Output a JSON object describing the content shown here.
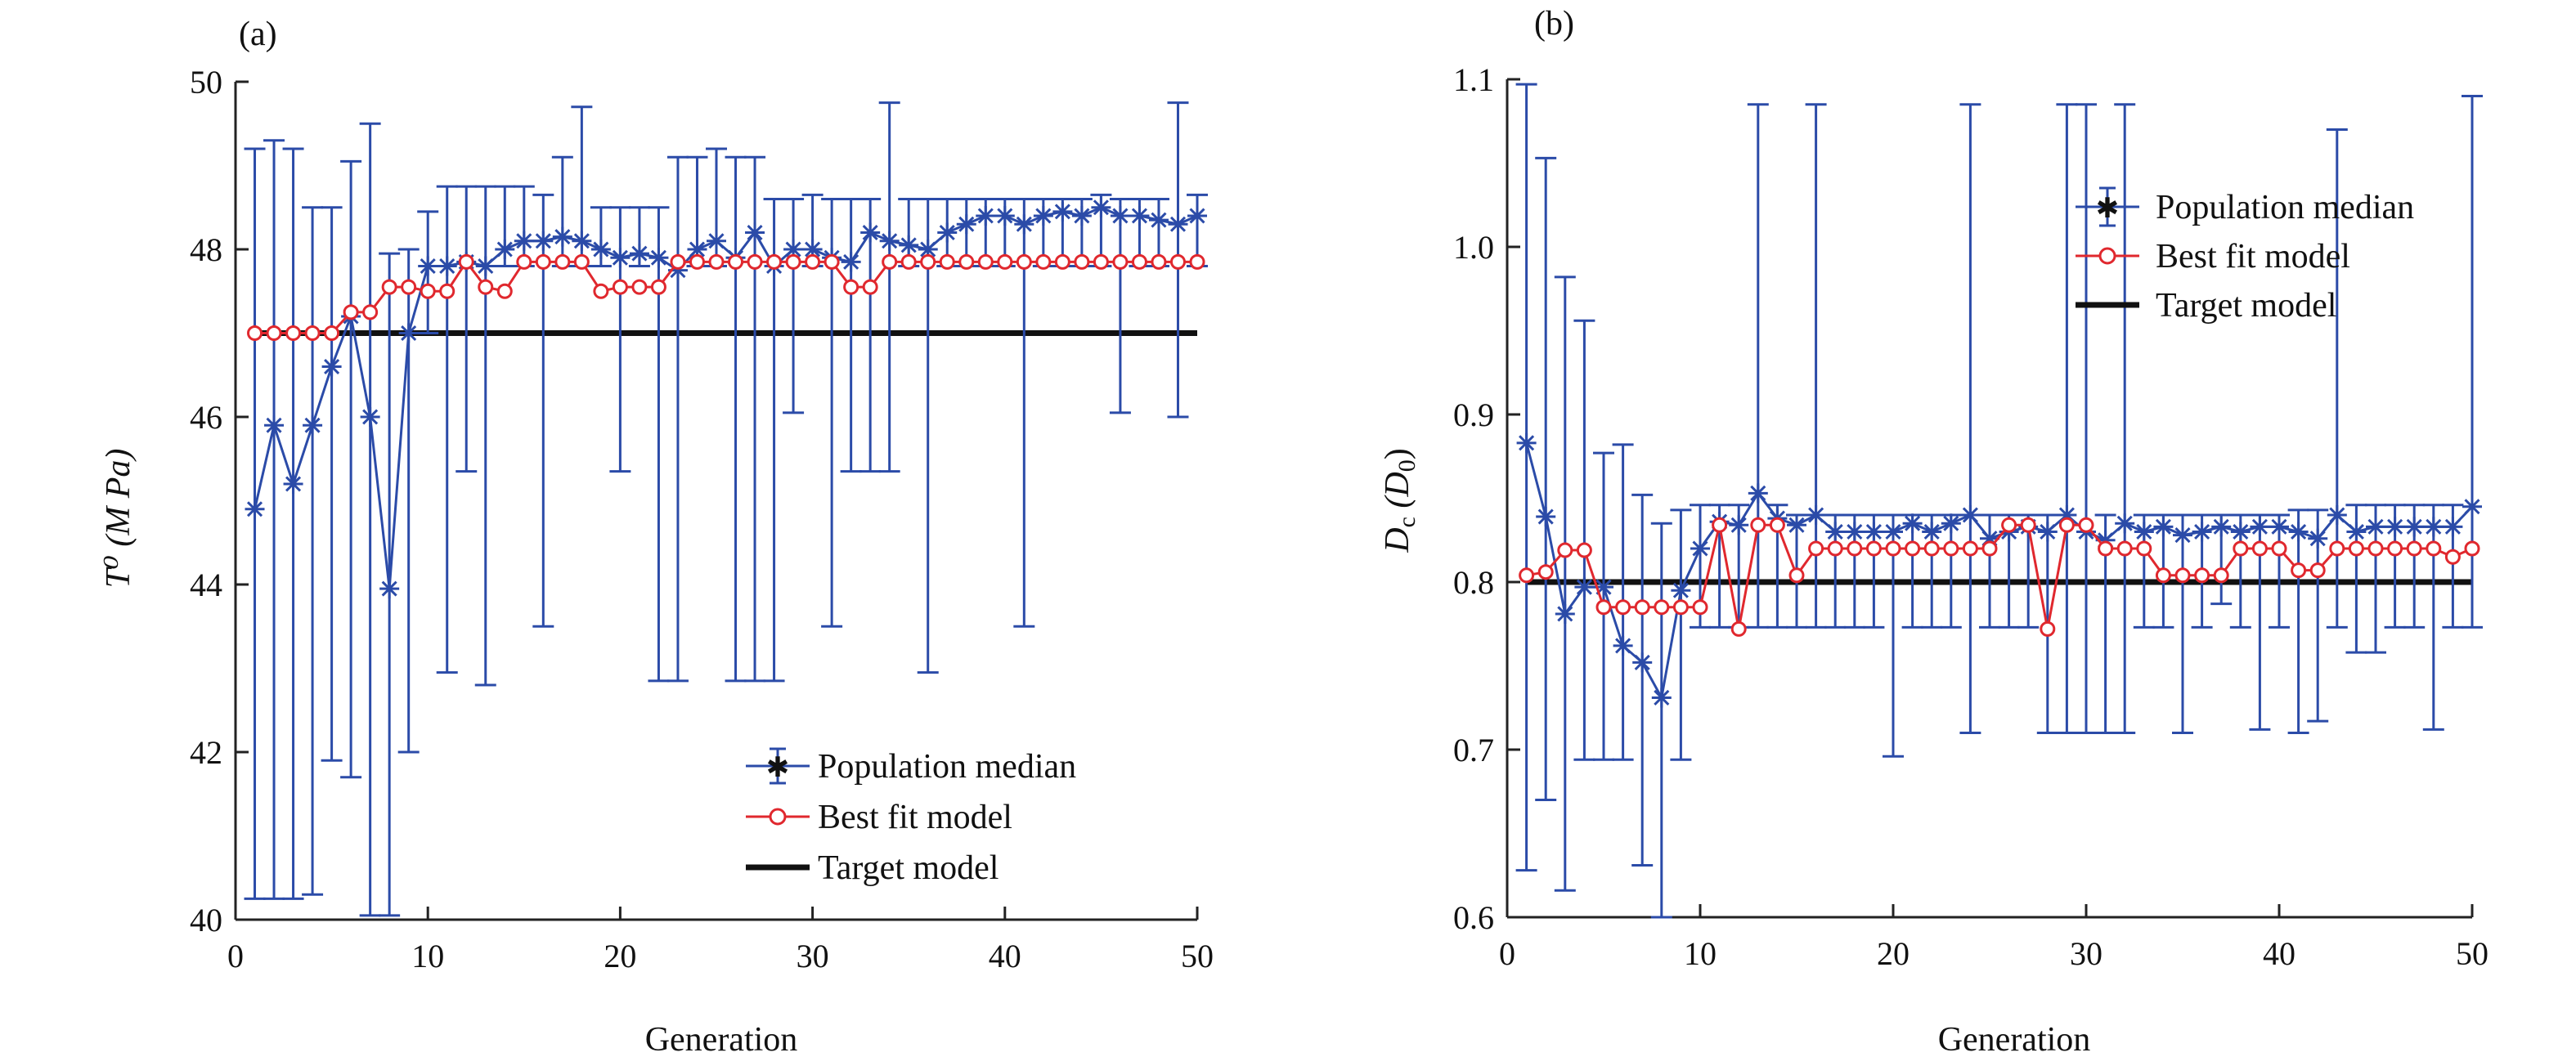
{
  "chart_data": [
    {
      "type": "line",
      "panel_label": "(a)",
      "xlabel": "Generation",
      "ylabel": "T⁰ (M Pa)",
      "xlim": [
        0,
        50
      ],
      "ylim": [
        40,
        50
      ],
      "xticks": [
        0,
        10,
        20,
        30,
        40,
        50
      ],
      "yticks": [
        40,
        42,
        44,
        46,
        48,
        50
      ],
      "legend_position": "bottom-right",
      "x": [
        1,
        2,
        3,
        4,
        5,
        6,
        7,
        8,
        9,
        10,
        11,
        12,
        13,
        14,
        15,
        16,
        17,
        18,
        19,
        20,
        21,
        22,
        23,
        24,
        25,
        26,
        27,
        28,
        29,
        30,
        31,
        32,
        33,
        34,
        35,
        36,
        37,
        38,
        39,
        40,
        41,
        42,
        43,
        44,
        45,
        46,
        47,
        48,
        49,
        50
      ],
      "series": [
        {
          "name": "Population median",
          "color": "#2b4ba8",
          "marker": "asterisk",
          "values": [
            44.9,
            45.9,
            45.2,
            45.9,
            46.6,
            47.2,
            46.0,
            43.95,
            47.0,
            47.8,
            47.8,
            47.85,
            47.8,
            48.0,
            48.1,
            48.1,
            48.15,
            48.1,
            48.0,
            47.9,
            47.95,
            47.9,
            47.75,
            48.0,
            48.1,
            47.9,
            48.2,
            47.8,
            48.0,
            48.0,
            47.9,
            47.85,
            48.2,
            48.1,
            48.05,
            48.0,
            48.2,
            48.3,
            48.4,
            48.4,
            48.3,
            48.4,
            48.45,
            48.4,
            48.5,
            48.4,
            48.4,
            48.35,
            48.3,
            48.4
          ],
          "error_upper": [
            49.2,
            49.3,
            49.2,
            48.5,
            48.5,
            49.05,
            49.5,
            47.95,
            48.0,
            48.45,
            48.75,
            48.75,
            48.75,
            48.75,
            48.75,
            48.65,
            49.1,
            49.7,
            48.5,
            48.5,
            48.5,
            48.5,
            49.1,
            49.1,
            49.2,
            49.1,
            49.1,
            48.6,
            48.6,
            48.65,
            48.6,
            48.6,
            48.6,
            49.75,
            48.6,
            48.6,
            48.6,
            48.6,
            48.6,
            48.6,
            48.6,
            48.6,
            48.6,
            48.6,
            48.65,
            48.6,
            48.6,
            48.6,
            49.75,
            48.65
          ],
          "error_lower": [
            40.25,
            40.25,
            40.25,
            40.3,
            41.9,
            41.7,
            40.05,
            40.05,
            42.0,
            47.0,
            42.95,
            45.35,
            42.8,
            47.8,
            47.8,
            43.5,
            47.8,
            47.8,
            47.8,
            45.35,
            47.8,
            42.85,
            42.85,
            47.8,
            47.8,
            42.85,
            42.85,
            42.85,
            46.05,
            47.8,
            43.5,
            45.35,
            45.35,
            45.35,
            47.8,
            42.95,
            47.8,
            47.8,
            47.8,
            47.8,
            43.5,
            47.8,
            47.8,
            47.8,
            47.8,
            46.05,
            47.8,
            47.8,
            46.0,
            47.8
          ]
        },
        {
          "name": "Best fit model",
          "color": "#e0282e",
          "marker": "circle",
          "values": [
            47.0,
            47.0,
            47.0,
            47.0,
            47.0,
            47.25,
            47.25,
            47.55,
            47.55,
            47.5,
            47.5,
            47.85,
            47.55,
            47.5,
            47.85,
            47.85,
            47.85,
            47.85,
            47.5,
            47.55,
            47.55,
            47.55,
            47.85,
            47.85,
            47.85,
            47.85,
            47.85,
            47.85,
            47.85,
            47.85,
            47.85,
            47.55,
            47.55,
            47.85,
            47.85,
            47.85,
            47.85,
            47.85,
            47.85,
            47.85,
            47.85,
            47.85,
            47.85,
            47.85,
            47.85,
            47.85,
            47.85,
            47.85,
            47.85,
            47.85
          ]
        },
        {
          "name": "Target model",
          "color": "#111111",
          "marker": "none",
          "constant": 47.0
        }
      ]
    },
    {
      "type": "line",
      "panel_label": "(b)",
      "xlabel": "Generation",
      "ylabel_main": "D",
      "ylabel_sub": "c",
      "ylabel_open": " (D",
      "ylabel_sub2": "0",
      "ylabel_close": ")",
      "xlim": [
        0,
        50
      ],
      "ylim": [
        0.6,
        1.1
      ],
      "xticks": [
        0,
        10,
        20,
        30,
        40,
        50
      ],
      "yticks": [
        0.6,
        0.7,
        0.8,
        0.9,
        1.0,
        1.1
      ],
      "legend_position": "top-right",
      "x": [
        1,
        2,
        3,
        4,
        5,
        6,
        7,
        8,
        9,
        10,
        11,
        12,
        13,
        14,
        15,
        16,
        17,
        18,
        19,
        20,
        21,
        22,
        23,
        24,
        25,
        26,
        27,
        28,
        29,
        30,
        31,
        32,
        33,
        34,
        35,
        36,
        37,
        38,
        39,
        40,
        41,
        42,
        43,
        44,
        45,
        46,
        47,
        48,
        49,
        50
      ],
      "series": [
        {
          "name": "Population median",
          "color": "#2b4ba8",
          "marker": "asterisk",
          "values": [
            0.883,
            0.839,
            0.781,
            0.797,
            0.797,
            0.762,
            0.752,
            0.731,
            0.795,
            0.82,
            0.836,
            0.834,
            0.853,
            0.838,
            0.834,
            0.84,
            0.83,
            0.83,
            0.83,
            0.83,
            0.835,
            0.83,
            0.835,
            0.84,
            0.826,
            0.83,
            0.833,
            0.83,
            0.84,
            0.83,
            0.825,
            0.835,
            0.83,
            0.833,
            0.828,
            0.83,
            0.833,
            0.83,
            0.833,
            0.833,
            0.83,
            0.826,
            0.84,
            0.83,
            0.833,
            0.833,
            0.833,
            0.833,
            0.833,
            0.845
          ],
          "error_upper": [
            1.097,
            1.053,
            0.982,
            0.956,
            0.877,
            0.882,
            0.852,
            0.835,
            0.843,
            0.846,
            0.846,
            0.846,
            1.085,
            0.846,
            0.84,
            1.085,
            0.84,
            0.84,
            0.84,
            0.84,
            0.84,
            0.84,
            0.84,
            1.085,
            0.84,
            0.84,
            0.84,
            0.84,
            1.085,
            1.085,
            0.84,
            1.085,
            0.84,
            0.84,
            0.84,
            0.84,
            0.84,
            0.84,
            0.84,
            0.84,
            0.843,
            0.843,
            1.07,
            0.846,
            0.846,
            0.846,
            0.846,
            0.846,
            0.846,
            1.09
          ],
          "error_lower": [
            0.628,
            0.67,
            0.616,
            0.694,
            0.694,
            0.694,
            0.631,
            0.597,
            0.694,
            0.773,
            0.773,
            0.773,
            0.773,
            0.773,
            0.773,
            0.773,
            0.773,
            0.773,
            0.773,
            0.696,
            0.773,
            0.773,
            0.773,
            0.71,
            0.773,
            0.773,
            0.773,
            0.71,
            0.71,
            0.71,
            0.71,
            0.71,
            0.773,
            0.773,
            0.71,
            0.773,
            0.787,
            0.773,
            0.712,
            0.773,
            0.71,
            0.717,
            0.773,
            0.758,
            0.758,
            0.773,
            0.773,
            0.712,
            0.773,
            0.773
          ]
        },
        {
          "name": "Best fit model",
          "color": "#e0282e",
          "marker": "circle",
          "values": [
            0.804,
            0.806,
            0.819,
            0.819,
            0.785,
            0.785,
            0.785,
            0.785,
            0.785,
            0.785,
            0.834,
            0.772,
            0.834,
            0.834,
            0.804,
            0.82,
            0.82,
            0.82,
            0.82,
            0.82,
            0.82,
            0.82,
            0.82,
            0.82,
            0.82,
            0.834,
            0.834,
            0.772,
            0.834,
            0.834,
            0.82,
            0.82,
            0.82,
            0.804,
            0.804,
            0.804,
            0.804,
            0.82,
            0.82,
            0.82,
            0.807,
            0.807,
            0.82,
            0.82,
            0.82,
            0.82,
            0.82,
            0.82,
            0.815,
            0.82
          ]
        },
        {
          "name": "Target model",
          "color": "#111111",
          "marker": "none",
          "constant": 0.8
        }
      ]
    }
  ]
}
